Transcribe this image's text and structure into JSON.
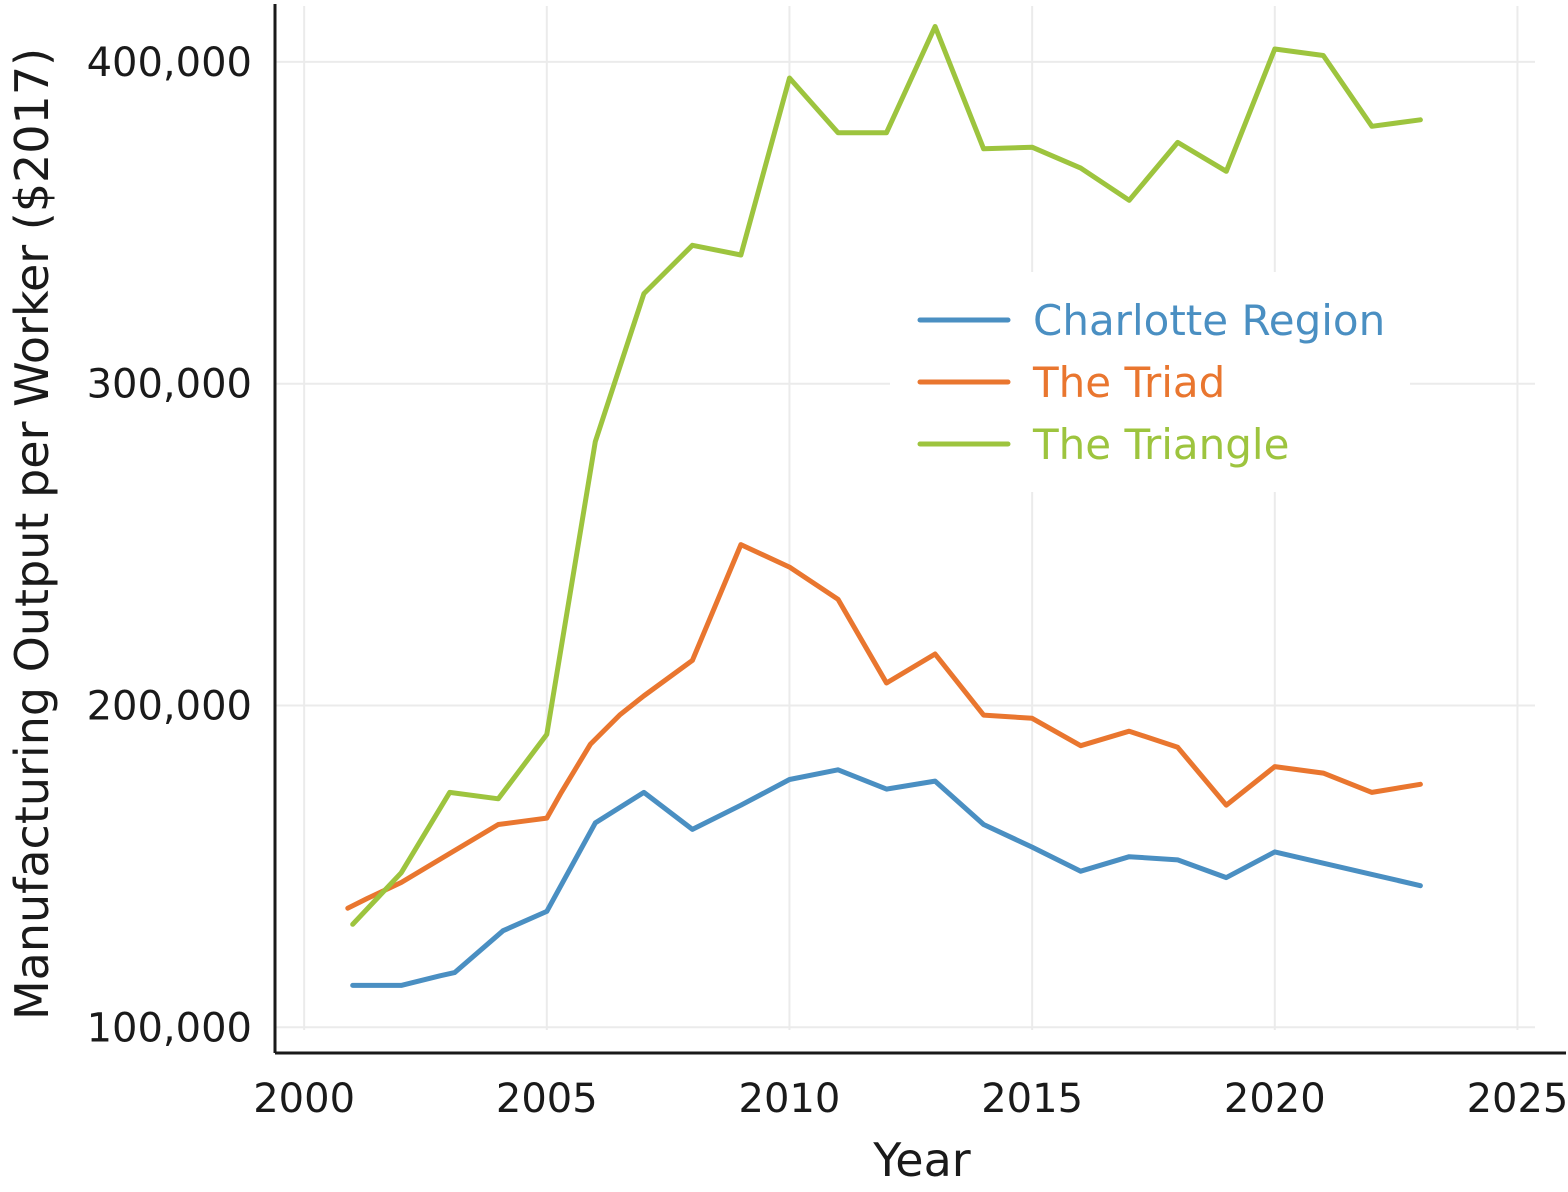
{
  "chart_data": {
    "type": "line",
    "title": "",
    "xlabel": "Year",
    "ylabel": "Manufacturing Output per Worker ($2017)",
    "xlim": [
      1999.4,
      2026.0
    ],
    "ylim": [
      92000,
      418000
    ],
    "x_ticks": [
      2000,
      2005,
      2010,
      2015,
      2020,
      2025
    ],
    "x_tick_labels": [
      "2000",
      "2005",
      "2010",
      "2015",
      "2020",
      "2025"
    ],
    "y_ticks": [
      100000,
      200000,
      300000,
      400000
    ],
    "y_tick_labels": [
      "100,000",
      "200,000",
      "300,000",
      "400,000"
    ],
    "grid": true,
    "legend_position": "upper-right",
    "series": [
      {
        "name": "Charlotte Region",
        "color": "#4a8fc2",
        "x": [
          2001,
          2002,
          2002.8,
          2003.1,
          2004.1,
          2005,
          2006,
          2007,
          2008,
          2009,
          2010,
          2011,
          2012,
          2013,
          2014,
          2015,
          2016,
          2017,
          2018,
          2019,
          2020,
          2021,
          2022,
          2023
        ],
        "values": [
          113000,
          113000,
          116000,
          117000,
          130000,
          136000,
          163500,
          173000,
          161500,
          169000,
          177000,
          180000,
          174000,
          176500,
          163000,
          156000,
          148500,
          153000,
          152000,
          146500,
          154500,
          151000,
          147500,
          144000
        ]
      },
      {
        "name": "The Triad",
        "color": "#e9762f",
        "x": [
          2000.9,
          2001.3,
          2002,
          2003,
          2004,
          2004.5,
          2005,
          2005.3,
          2005.9,
          2006.5,
          2007,
          2008,
          2009,
          2010,
          2011,
          2012,
          2013,
          2014,
          2015,
          2016,
          2017,
          2018,
          2019,
          2020,
          2021,
          2022,
          2023
        ],
        "values": [
          137000,
          140000,
          145000,
          154000,
          163000,
          164000,
          165000,
          173000,
          188000,
          197000,
          203000,
          214000,
          250000,
          243000,
          233000,
          207000,
          216000,
          197000,
          196000,
          187500,
          192000,
          187000,
          169000,
          181000,
          179000,
          173000,
          175500
        ]
      },
      {
        "name": "The Triangle",
        "color": "#9dc43e",
        "x": [
          2001,
          2002,
          2003,
          2004,
          2005,
          2006,
          2007,
          2008,
          2009,
          2010,
          2011,
          2012,
          2013,
          2014,
          2015,
          2016,
          2017,
          2018,
          2019,
          2020,
          2021,
          2022,
          2023
        ],
        "values": [
          132000,
          148000,
          173000,
          171000,
          191000,
          282000,
          328000,
          343000,
          340000,
          395000,
          378000,
          378000,
          411000,
          373000,
          373500,
          367000,
          357000,
          375000,
          366000,
          404000,
          402000,
          380000,
          382000
        ]
      }
    ]
  }
}
